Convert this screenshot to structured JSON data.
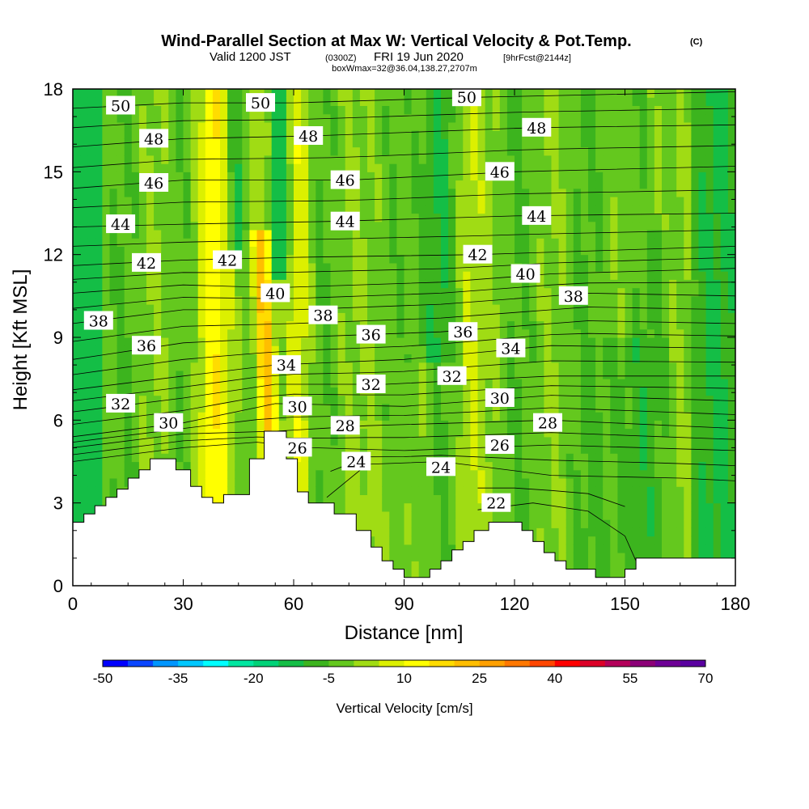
{
  "title": "Wind-Parallel Section at Max W: Vertical Velocity & Pot.Temp.",
  "title_mark": "(C)",
  "valid_prefix": "Valid 1200 JST",
  "valid_utc": "(0300Z)",
  "valid_date": "FRI 19 Jun 2020",
  "valid_fcst": "[9hrFcst@2144z]",
  "box_info": "boxWmax=32@36.04,138.27,2707m",
  "chart_data": {
    "type": "contour-section",
    "xlabel": "Distance [nm]",
    "ylabel": "Height [Kft MSL]",
    "xlim": [
      0,
      180
    ],
    "ylim": [
      0,
      18
    ],
    "x_ticks": [
      "0",
      "30",
      "60",
      "90",
      "120",
      "150",
      "180"
    ],
    "y_ticks": [
      "0",
      "3",
      "6",
      "9",
      "12",
      "15",
      "18"
    ],
    "colorbar_label": "Vertical Velocity [cm/s]",
    "colorbar_ticks": [
      "-50",
      "-35",
      "-20",
      "-5",
      "10",
      "25",
      "40",
      "55",
      "70"
    ],
    "colorbar_colors": [
      "#0000ff",
      "#0a46ff",
      "#0096ff",
      "#00c8ff",
      "#00ffff",
      "#00e6a0",
      "#00d278",
      "#14be46",
      "#3cb41e",
      "#64c81e",
      "#a0dc14",
      "#dcf000",
      "#ffff00",
      "#ffdc00",
      "#ffbe00",
      "#ffa000",
      "#ff7800",
      "#ff4600",
      "#ff0000",
      "#dc0028",
      "#b4005a",
      "#8c0078",
      "#6e0096",
      "#5a00a0"
    ],
    "contour_labels": [
      {
        "text": "50",
        "x": 13,
        "y": 17.4
      },
      {
        "text": "50",
        "x": 51,
        "y": 17.5
      },
      {
        "text": "50",
        "x": 107,
        "y": 17.7
      },
      {
        "text": "48",
        "x": 22,
        "y": 16.2
      },
      {
        "text": "48",
        "x": 64,
        "y": 16.3
      },
      {
        "text": "48",
        "x": 126,
        "y": 16.6
      },
      {
        "text": "46",
        "x": 22,
        "y": 14.6
      },
      {
        "text": "46",
        "x": 74,
        "y": 14.7
      },
      {
        "text": "46",
        "x": 116,
        "y": 15.0
      },
      {
        "text": "44",
        "x": 13,
        "y": 13.1
      },
      {
        "text": "44",
        "x": 74,
        "y": 13.2
      },
      {
        "text": "44",
        "x": 126,
        "y": 13.4
      },
      {
        "text": "42",
        "x": 20,
        "y": 11.7
      },
      {
        "text": "42",
        "x": 42,
        "y": 11.8
      },
      {
        "text": "42",
        "x": 110,
        "y": 12.0
      },
      {
        "text": "40",
        "x": 55,
        "y": 10.6
      },
      {
        "text": "40",
        "x": 123,
        "y": 11.3
      },
      {
        "text": "38",
        "x": 7,
        "y": 9.6
      },
      {
        "text": "38",
        "x": 68,
        "y": 9.8
      },
      {
        "text": "38",
        "x": 136,
        "y": 10.5
      },
      {
        "text": "36",
        "x": 20,
        "y": 8.7
      },
      {
        "text": "36",
        "x": 81,
        "y": 9.1
      },
      {
        "text": "36",
        "x": 106,
        "y": 9.2
      },
      {
        "text": "34",
        "x": 58,
        "y": 8.0
      },
      {
        "text": "34",
        "x": 119,
        "y": 8.6
      },
      {
        "text": "32",
        "x": 13,
        "y": 6.6
      },
      {
        "text": "32",
        "x": 81,
        "y": 7.3
      },
      {
        "text": "32",
        "x": 103,
        "y": 7.6
      },
      {
        "text": "30",
        "x": 26,
        "y": 5.9
      },
      {
        "text": "30",
        "x": 61,
        "y": 6.5
      },
      {
        "text": "30",
        "x": 116,
        "y": 6.8
      },
      {
        "text": "28",
        "x": 74,
        "y": 5.8
      },
      {
        "text": "28",
        "x": 129,
        "y": 5.9
      },
      {
        "text": "26",
        "x": 61,
        "y": 5.0
      },
      {
        "text": "26",
        "x": 116,
        "y": 5.1
      },
      {
        "text": "24",
        "x": 77,
        "y": 4.5
      },
      {
        "text": "24",
        "x": 100,
        "y": 4.3
      },
      {
        "text": "22",
        "x": 115,
        "y": 3.0
      }
    ],
    "isotherm_anchors": [
      {
        "theta": 22,
        "pts": [
          [
            110,
            2.75
          ],
          [
            125,
            3.0
          ],
          [
            140,
            2.7
          ],
          [
            150,
            1.8
          ],
          [
            153,
            0.9
          ]
        ]
      },
      {
        "theta": 24,
        "pts": [
          [
            69,
            3.2
          ],
          [
            80,
            4.4
          ],
          [
            100,
            4.5
          ],
          [
            130,
            4.0
          ],
          [
            165,
            3.9
          ],
          [
            180,
            3.8
          ]
        ]
      },
      {
        "theta": 26,
        "pts": [
          [
            0,
            4.5
          ],
          [
            30,
            5.0
          ],
          [
            50,
            5.2
          ],
          [
            65,
            5.0
          ],
          [
            90,
            4.9
          ],
          [
            130,
            5.1
          ],
          [
            180,
            4.9
          ]
        ]
      },
      {
        "theta": 28,
        "pts": [
          [
            0,
            5.0
          ],
          [
            30,
            5.5
          ],
          [
            55,
            5.6
          ],
          [
            80,
            5.8
          ],
          [
            130,
            6.0
          ],
          [
            180,
            5.7
          ]
        ]
      },
      {
        "theta": 30,
        "pts": [
          [
            0,
            5.4
          ],
          [
            30,
            5.9
          ],
          [
            55,
            6.6
          ],
          [
            90,
            6.5
          ],
          [
            130,
            6.9
          ],
          [
            180,
            6.7
          ]
        ]
      },
      {
        "theta": 32,
        "pts": [
          [
            0,
            6.3
          ],
          [
            30,
            6.8
          ],
          [
            55,
            7.3
          ],
          [
            85,
            7.3
          ],
          [
            130,
            7.6
          ],
          [
            180,
            7.6
          ]
        ]
      },
      {
        "theta": 34,
        "pts": [
          [
            0,
            7.1
          ],
          [
            30,
            7.6
          ],
          [
            55,
            8.0
          ],
          [
            90,
            8.2
          ],
          [
            130,
            8.7
          ],
          [
            180,
            8.6
          ]
        ]
      },
      {
        "theta": 36,
        "pts": [
          [
            0,
            8.2
          ],
          [
            30,
            8.8
          ],
          [
            60,
            9.0
          ],
          [
            100,
            9.2
          ],
          [
            140,
            9.6
          ],
          [
            180,
            9.5
          ]
        ]
      },
      {
        "theta": 38,
        "pts": [
          [
            0,
            9.5
          ],
          [
            30,
            10.0
          ],
          [
            60,
            10.0
          ],
          [
            100,
            10.2
          ],
          [
            140,
            10.6
          ],
          [
            180,
            10.5
          ]
        ]
      },
      {
        "theta": 40,
        "pts": [
          [
            0,
            10.6
          ],
          [
            30,
            10.9
          ],
          [
            55,
            10.8
          ],
          [
            100,
            11.0
          ],
          [
            130,
            11.3
          ],
          [
            180,
            11.5
          ]
        ]
      },
      {
        "theta": 42,
        "pts": [
          [
            0,
            11.6
          ],
          [
            30,
            11.8
          ],
          [
            60,
            11.9
          ],
          [
            110,
            12.0
          ],
          [
            180,
            12.3
          ]
        ]
      },
      {
        "theta": 44,
        "pts": [
          [
            0,
            13.0
          ],
          [
            30,
            13.1
          ],
          [
            70,
            13.2
          ],
          [
            120,
            13.4
          ],
          [
            180,
            13.5
          ]
        ]
      },
      {
        "theta": 46,
        "pts": [
          [
            0,
            14.4
          ],
          [
            30,
            14.7
          ],
          [
            75,
            14.7
          ],
          [
            120,
            15.0
          ],
          [
            180,
            15.2
          ]
        ]
      },
      {
        "theta": 48,
        "pts": [
          [
            0,
            15.9
          ],
          [
            30,
            16.2
          ],
          [
            65,
            16.3
          ],
          [
            125,
            16.6
          ],
          [
            180,
            16.7
          ]
        ]
      },
      {
        "theta": 50,
        "pts": [
          [
            0,
            17.3
          ],
          [
            30,
            17.5
          ],
          [
            60,
            17.5
          ],
          [
            110,
            17.7
          ],
          [
            180,
            17.9
          ]
        ]
      }
    ],
    "terrain": [
      [
        0,
        2.3
      ],
      [
        3,
        2.3
      ],
      [
        3,
        2.6
      ],
      [
        6,
        2.6
      ],
      [
        6,
        2.9
      ],
      [
        9,
        2.9
      ],
      [
        9,
        3.2
      ],
      [
        12,
        3.2
      ],
      [
        12,
        3.5
      ],
      [
        15,
        3.5
      ],
      [
        15,
        3.9
      ],
      [
        18,
        3.9
      ],
      [
        18,
        4.2
      ],
      [
        21,
        4.2
      ],
      [
        21,
        4.6
      ],
      [
        28,
        4.6
      ],
      [
        28,
        4.2
      ],
      [
        32,
        4.2
      ],
      [
        32,
        3.6
      ],
      [
        35,
        3.6
      ],
      [
        35,
        3.2
      ],
      [
        38,
        3.2
      ],
      [
        38,
        3.0
      ],
      [
        41,
        3.0
      ],
      [
        41,
        3.3
      ],
      [
        48,
        3.3
      ],
      [
        48,
        4.6
      ],
      [
        52,
        4.6
      ],
      [
        52,
        5.6
      ],
      [
        58,
        5.6
      ],
      [
        58,
        4.6
      ],
      [
        61,
        4.6
      ],
      [
        61,
        3.4
      ],
      [
        64,
        3.4
      ],
      [
        64,
        3.0
      ],
      [
        71,
        3.0
      ],
      [
        71,
        2.6
      ],
      [
        77,
        2.6
      ],
      [
        77,
        2.0
      ],
      [
        81,
        2.0
      ],
      [
        81,
        1.4
      ],
      [
        84,
        1.4
      ],
      [
        84,
        0.9
      ],
      [
        87,
        0.9
      ],
      [
        87,
        0.6
      ],
      [
        90,
        0.6
      ],
      [
        90,
        0.3
      ],
      [
        97,
        0.3
      ],
      [
        97,
        0.6
      ],
      [
        100,
        0.6
      ],
      [
        100,
        0.9
      ],
      [
        103,
        0.9
      ],
      [
        103,
        1.3
      ],
      [
        106,
        1.3
      ],
      [
        106,
        1.6
      ],
      [
        109,
        1.6
      ],
      [
        109,
        2.0
      ],
      [
        113,
        2.0
      ],
      [
        113,
        2.3
      ],
      [
        122,
        2.3
      ],
      [
        122,
        2.0
      ],
      [
        125,
        2.0
      ],
      [
        125,
        1.6
      ],
      [
        128,
        1.6
      ],
      [
        128,
        1.2
      ],
      [
        131,
        1.2
      ],
      [
        131,
        0.9
      ],
      [
        134,
        0.9
      ],
      [
        134,
        0.6
      ],
      [
        142,
        0.6
      ],
      [
        142,
        0.3
      ],
      [
        150,
        0.3
      ],
      [
        150,
        0.6
      ],
      [
        153,
        0.6
      ],
      [
        153,
        1.0
      ],
      [
        180,
        1.0
      ]
    ]
  }
}
